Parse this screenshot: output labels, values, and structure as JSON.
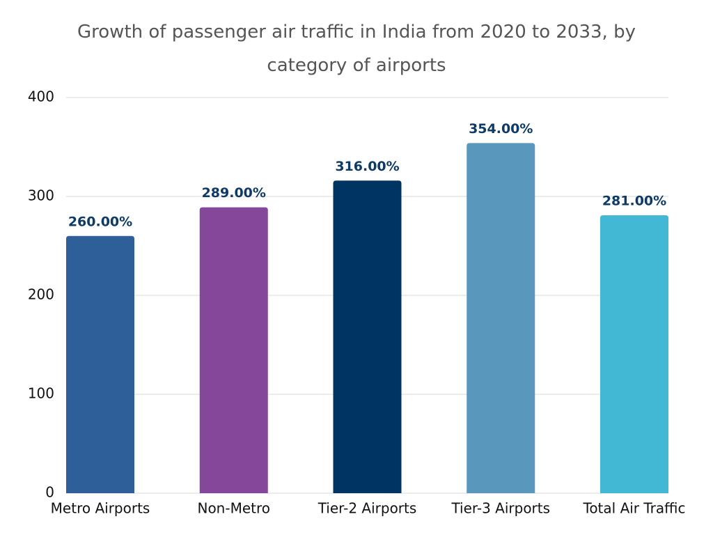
{
  "chart_data": {
    "type": "bar",
    "title": "Growth of passenger air traffic in India from 2020 to 2033, by category of airports",
    "categories": [
      "Metro Airports",
      "Non-Metro",
      "Tier-2 Airports",
      "Tier-3 Airports",
      "Total Air Traffic"
    ],
    "values": [
      260,
      289,
      316,
      354,
      281
    ],
    "value_labels": [
      "260.00%",
      "289.00%",
      "316.00%",
      "354.00%",
      "281.00%"
    ],
    "colors": [
      "#2e5f98",
      "#84479a",
      "#003462",
      "#5a97bc",
      "#43b8d5"
    ],
    "ylim": [
      0,
      400
    ],
    "yticks": [
      0,
      100,
      200,
      300,
      400
    ],
    "grid": true
  }
}
